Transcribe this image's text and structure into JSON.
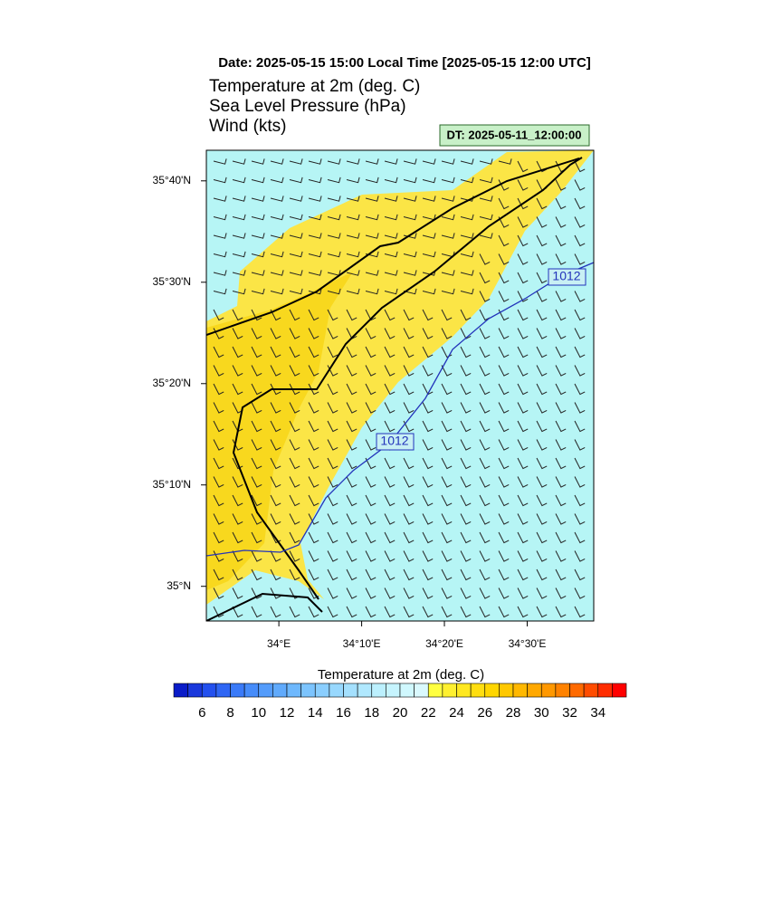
{
  "header": {
    "date_line": "Date: 2025-05-15  15:00 Local Time [2025-05-15  12:00 UTC]",
    "fields": [
      "Temperature at 2m   (deg. C)",
      "Sea Level Pressure   (hPa)",
      "Wind   (kts)"
    ],
    "dt_label": "DT: 2025-05-11_12:00:00"
  },
  "map": {
    "lonlim": [
      33.854,
      34.634
    ],
    "latlim": [
      34.943,
      35.717
    ],
    "lat_ticks": [
      {
        "value": 35.6667,
        "label": "35°40'N"
      },
      {
        "value": 35.5,
        "label": "35°30'N"
      },
      {
        "value": 35.3333,
        "label": "35°20'N"
      },
      {
        "value": 35.1667,
        "label": "35°10'N"
      },
      {
        "value": 35,
        "label": "35°N"
      }
    ],
    "lon_ticks": [
      {
        "value": 34,
        "label": "34°E"
      },
      {
        "value": 34.1667,
        "label": "34°10'E"
      },
      {
        "value": 34.3333,
        "label": "34°20'E"
      },
      {
        "value": 34.5,
        "label": "34°30'E"
      }
    ],
    "isobar_labels": [
      "1012",
      "1012"
    ]
  },
  "colorbar": {
    "title": "Temperature at 2m  (deg. C)",
    "lim": [
      4,
      36
    ],
    "ticks": [
      6,
      8,
      10,
      12,
      14,
      16,
      18,
      20,
      22,
      24,
      26,
      28,
      30,
      32,
      34
    ],
    "colors": [
      "#0a1cc8",
      "#1a38dc",
      "#2350ee",
      "#2f66f4",
      "#3a7af8",
      "#468cfa",
      "#549cfb",
      "#60aafc",
      "#6eb8fd",
      "#7cc4fe",
      "#8acefe",
      "#98d8fe",
      "#a4e0fe",
      "#b0e8fe",
      "#bcf0fe",
      "#c6f4fe",
      "#d0f8fe",
      "#daf9fe",
      "#ffff40",
      "#fff030",
      "#ffe820",
      "#ffde10",
      "#ffd600",
      "#ffc800",
      "#ffb800",
      "#ffa800",
      "#ff9800",
      "#ff8200",
      "#ff6a00",
      "#ff4c00",
      "#ff2c00",
      "#ff0000"
    ]
  }
}
